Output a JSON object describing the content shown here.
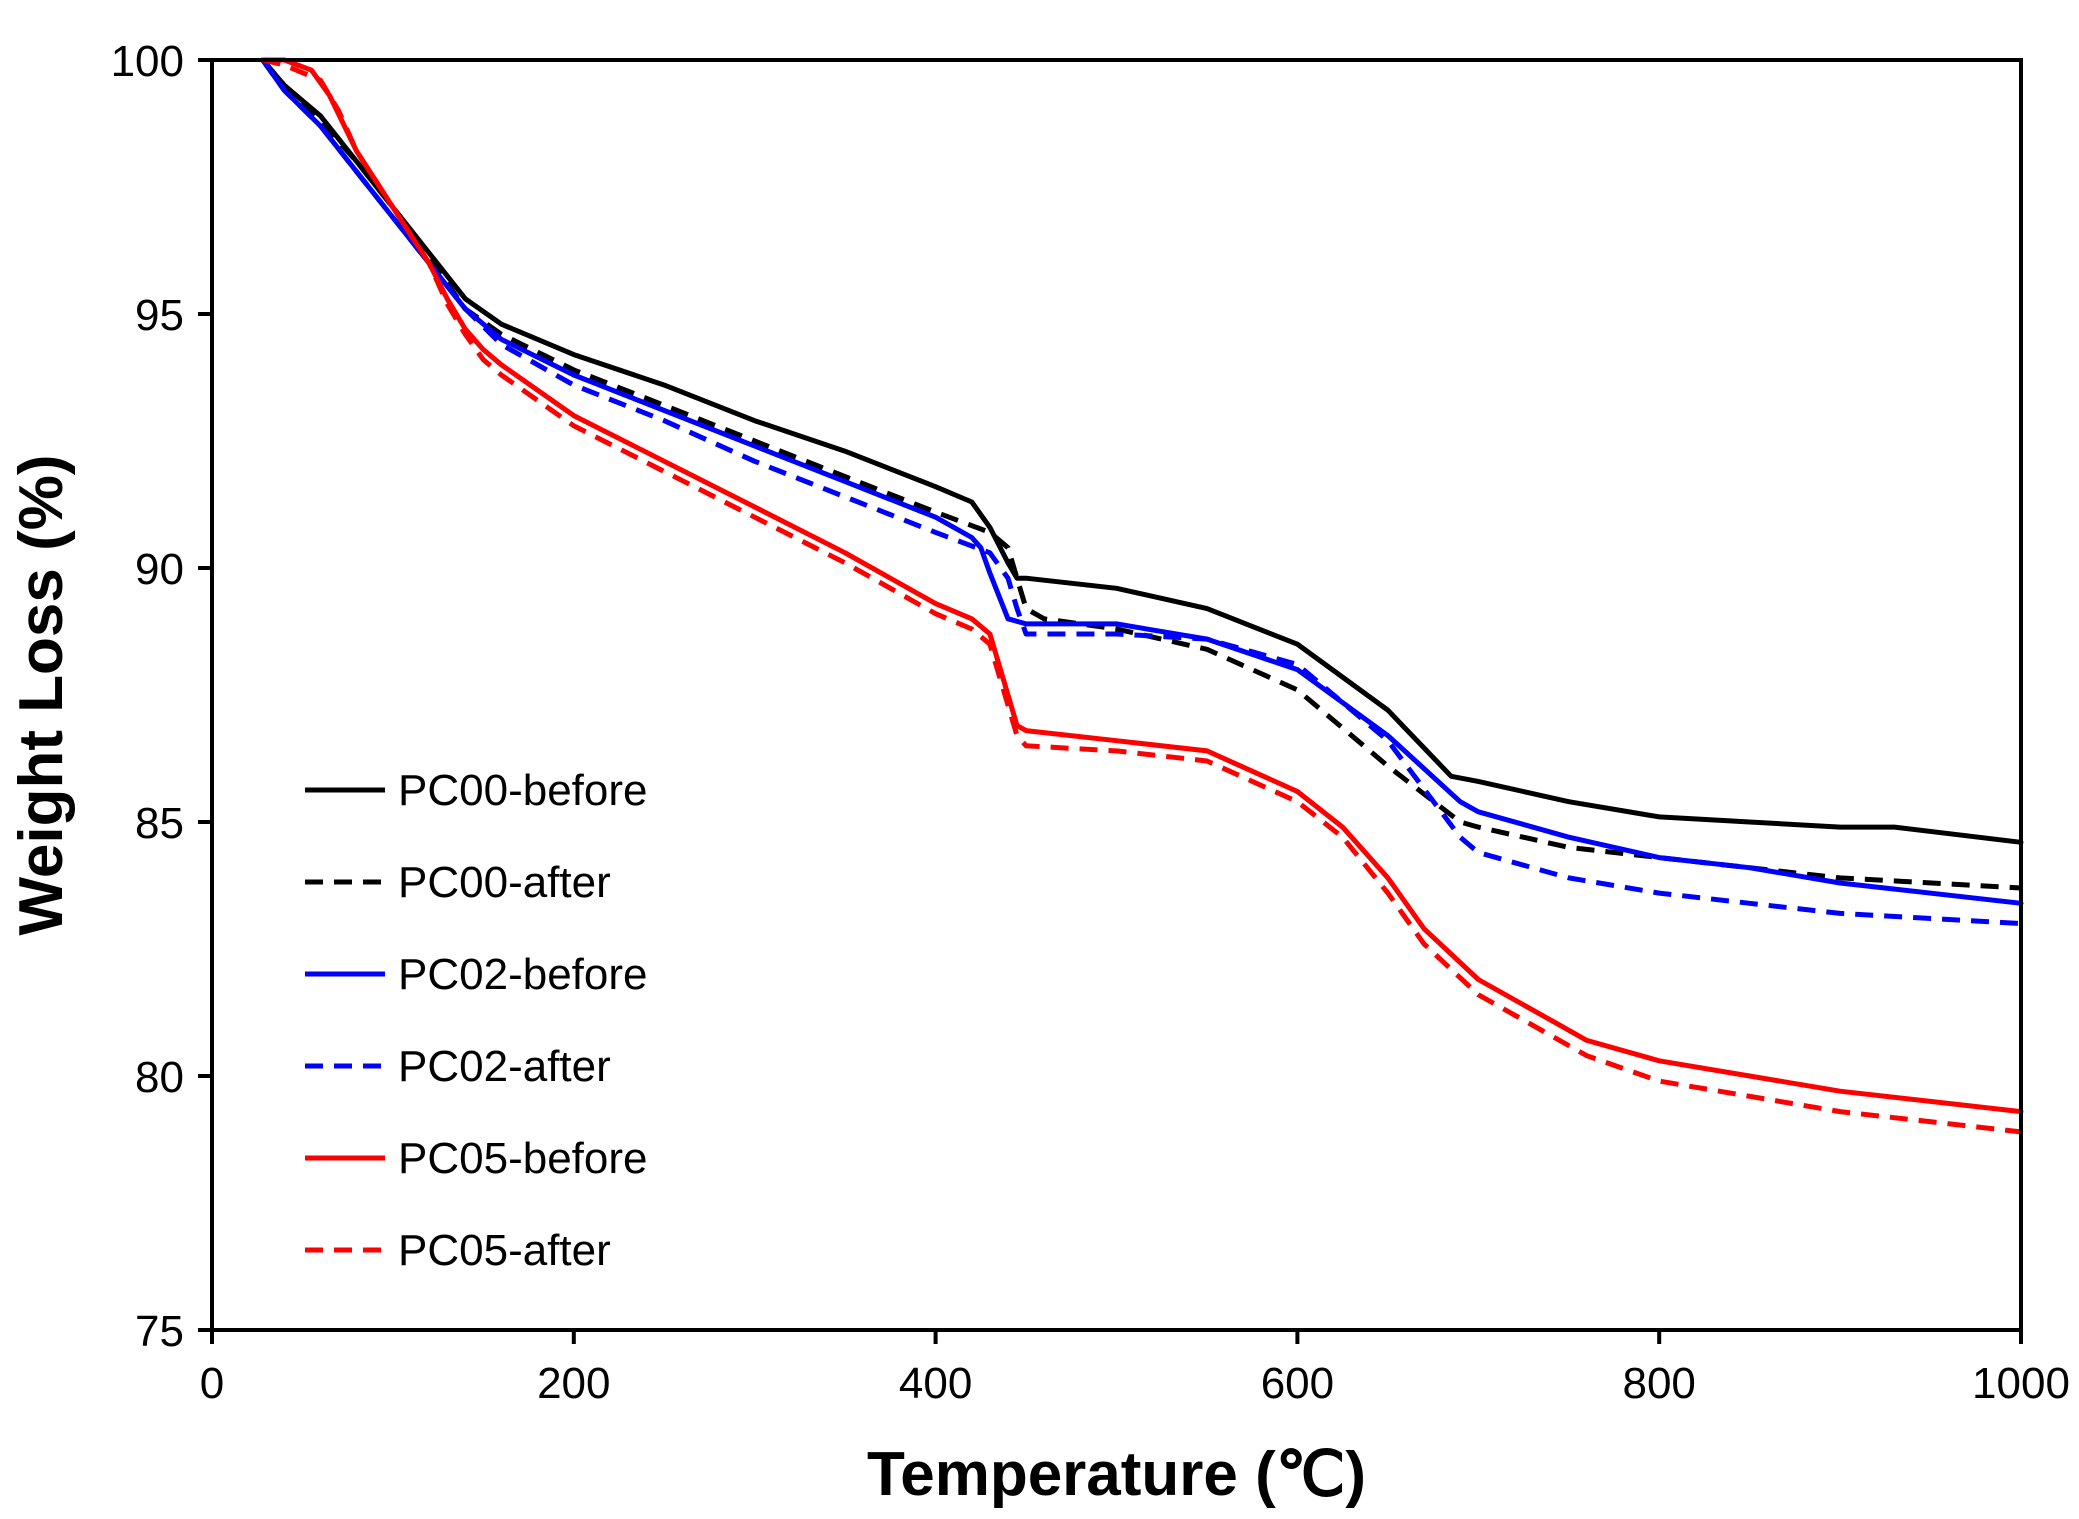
{
  "chart_data": {
    "type": "line",
    "title": "",
    "xlabel": "Temperature (℃)",
    "ylabel": "Weight Loss (%)",
    "xlim": [
      0,
      1000
    ],
    "ylim": [
      75,
      100
    ],
    "xticks": [
      0,
      200,
      400,
      600,
      800,
      1000
    ],
    "yticks": [
      75,
      80,
      85,
      90,
      95,
      100
    ],
    "xtick_labels": [
      "0",
      "200",
      "400",
      "600",
      "800",
      "1000"
    ],
    "ytick_labels": [
      "75",
      "80",
      "85",
      "90",
      "95",
      "100"
    ],
    "grid": false,
    "legend_position": "lower-left",
    "series": [
      {
        "name": "PC00-before",
        "color": "#000000",
        "dash": "solid",
        "x": [
          28,
          40,
          60,
          80,
          100,
          120,
          140,
          160,
          200,
          250,
          300,
          350,
          400,
          420,
          430,
          440,
          445,
          450,
          500,
          550,
          600,
          650,
          685,
          700,
          750,
          800,
          850,
          900,
          930,
          1000
        ],
        "y": [
          100,
          99.5,
          98.9,
          98.0,
          97.1,
          96.2,
          95.3,
          94.8,
          94.2,
          93.6,
          92.9,
          92.3,
          91.6,
          91.3,
          90.8,
          90.1,
          89.8,
          89.8,
          89.6,
          89.2,
          88.5,
          87.2,
          85.9,
          85.8,
          85.4,
          85.1,
          85.0,
          84.9,
          84.9,
          84.6
        ]
      },
      {
        "name": "PC00-after",
        "color": "#000000",
        "dash": "dashed",
        "x": [
          28,
          40,
          60,
          80,
          100,
          120,
          140,
          160,
          200,
          250,
          300,
          350,
          400,
          430,
          440,
          445,
          450,
          460,
          500,
          550,
          600,
          650,
          690,
          700,
          750,
          800,
          850,
          900,
          1000
        ],
        "y": [
          100,
          99.5,
          98.8,
          98.0,
          97.1,
          96.1,
          95.1,
          94.6,
          93.9,
          93.2,
          92.5,
          91.8,
          91.1,
          90.7,
          90.4,
          89.8,
          89.2,
          89.0,
          88.8,
          88.4,
          87.6,
          86.1,
          85.0,
          84.9,
          84.5,
          84.3,
          84.1,
          83.9,
          83.7
        ]
      },
      {
        "name": "PC02-before",
        "color": "#0000ff",
        "dash": "solid",
        "x": [
          28,
          40,
          60,
          80,
          100,
          120,
          140,
          160,
          200,
          250,
          300,
          350,
          400,
          420,
          425,
          430,
          440,
          450,
          500,
          550,
          600,
          650,
          690,
          700,
          750,
          800,
          850,
          900,
          1000
        ],
        "y": [
          100,
          99.4,
          98.7,
          97.8,
          96.9,
          96.0,
          95.1,
          94.5,
          93.8,
          93.1,
          92.4,
          91.7,
          91.0,
          90.6,
          90.4,
          89.9,
          89.0,
          88.9,
          88.9,
          88.6,
          88.0,
          86.7,
          85.4,
          85.2,
          84.7,
          84.3,
          84.1,
          83.8,
          83.4
        ]
      },
      {
        "name": "PC02-after",
        "color": "#0000ff",
        "dash": "dashed",
        "x": [
          28,
          40,
          60,
          80,
          100,
          120,
          140,
          160,
          200,
          250,
          300,
          350,
          400,
          430,
          440,
          445,
          450,
          500,
          550,
          600,
          650,
          690,
          700,
          750,
          800,
          850,
          900,
          1000
        ],
        "y": [
          100,
          99.4,
          98.7,
          97.8,
          96.9,
          96.0,
          95.1,
          94.4,
          93.6,
          92.9,
          92.1,
          91.4,
          90.7,
          90.3,
          89.8,
          89.2,
          88.7,
          88.7,
          88.6,
          88.1,
          86.6,
          84.7,
          84.4,
          83.9,
          83.6,
          83.4,
          83.2,
          83.0
        ]
      },
      {
        "name": "PC05-before",
        "color": "#ff0000",
        "dash": "solid",
        "x": [
          28,
          40,
          55,
          65,
          80,
          100,
          120,
          130,
          140,
          150,
          160,
          200,
          250,
          300,
          350,
          400,
          420,
          430,
          440,
          445,
          450,
          500,
          550,
          600,
          625,
          650,
          670,
          700,
          740,
          760,
          800,
          850,
          900,
          1000
        ],
        "y": [
          100,
          100,
          99.8,
          99.3,
          98.2,
          97.1,
          96.0,
          95.3,
          94.7,
          94.3,
          94.0,
          93.0,
          92.1,
          91.2,
          90.3,
          89.3,
          89.0,
          88.7,
          87.5,
          86.9,
          86.8,
          86.6,
          86.4,
          85.6,
          84.9,
          83.9,
          82.9,
          81.9,
          81.1,
          80.7,
          80.3,
          80.0,
          79.7,
          79.3
        ]
      },
      {
        "name": "PC05-after",
        "color": "#ff0000",
        "dash": "dashed",
        "x": [
          28,
          40,
          60,
          70,
          80,
          100,
          120,
          130,
          140,
          150,
          160,
          200,
          250,
          300,
          350,
          400,
          420,
          430,
          440,
          445,
          450,
          500,
          550,
          600,
          625,
          650,
          670,
          700,
          740,
          760,
          800,
          850,
          900,
          1000
        ],
        "y": [
          100,
          99.9,
          99.6,
          99.0,
          98.2,
          97.1,
          96.0,
          95.2,
          94.6,
          94.1,
          93.8,
          92.8,
          91.9,
          91.0,
          90.1,
          89.1,
          88.8,
          88.5,
          87.3,
          86.7,
          86.5,
          86.4,
          86.2,
          85.4,
          84.7,
          83.6,
          82.6,
          81.6,
          80.8,
          80.4,
          79.9,
          79.6,
          79.3,
          78.9
        ]
      }
    ]
  }
}
